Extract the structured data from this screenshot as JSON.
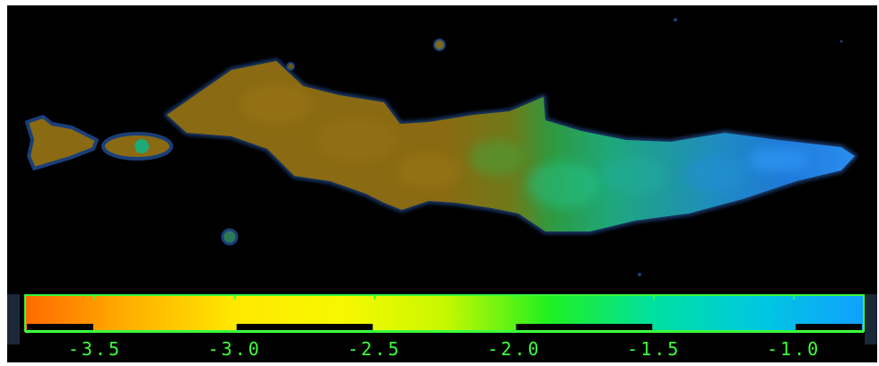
{
  "image": {
    "subject": "",
    "colors": {
      "background": "#000000",
      "outline": "#1a3f78",
      "olive": "#8a6a10",
      "olive_dark": "#6a5510",
      "green": "#2e9a40",
      "teal": "#1fa878",
      "blue": "#1f78d8",
      "blue_light": "#2a9cf0"
    }
  },
  "colorbar": {
    "ticks": [
      "-3.5",
      "-3.0",
      "-2.5",
      "-2.0",
      "-1.5",
      "-1.0"
    ],
    "range": [
      -3.75,
      -0.75
    ],
    "colors": {
      "stops": [
        "#ff6a00",
        "#ffb000",
        "#ffe800",
        "#f8f800",
        "#c8f800",
        "#20f020",
        "#00e0a0",
        "#00c8e0",
        "#10a0ff"
      ],
      "frame": "#3cff3c",
      "label": "#3cff3c"
    }
  }
}
